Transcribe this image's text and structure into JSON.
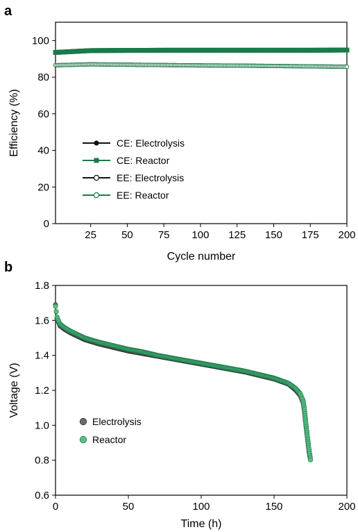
{
  "colors": {
    "electrolysis": "#111111",
    "reactor": "#1b7a4a",
    "reactor_fill": "#5cbf86",
    "electrolysis_fill": "#6b6b6b"
  },
  "chart_data": [
    {
      "type": "line",
      "panel": "a",
      "xlabel": "Cycle number",
      "ylabel": "Efficiency (%)",
      "xlim": [
        1,
        200
      ],
      "ylim": [
        0,
        110
      ],
      "xticks": [
        25,
        50,
        75,
        100,
        125,
        150,
        175,
        200
      ],
      "yticks": [
        0,
        20,
        40,
        60,
        80,
        100
      ],
      "grid": false,
      "legend_position": "lower-left",
      "series": [
        {
          "name": "CE: Electrolysis",
          "marker": "filled-circle",
          "color": "#111111",
          "x": [
            1,
            25,
            50,
            75,
            100,
            125,
            150,
            175,
            200
          ],
          "y": [
            93.5,
            94.5,
            94.6,
            94.7,
            94.7,
            94.7,
            94.7,
            94.7,
            94.8
          ]
        },
        {
          "name": "CE: Reactor",
          "marker": "filled-square",
          "color": "#1b7a4a",
          "x": [
            1,
            25,
            50,
            75,
            100,
            125,
            150,
            175,
            200
          ],
          "y": [
            93.5,
            94.5,
            94.6,
            94.7,
            94.7,
            94.7,
            94.7,
            94.7,
            94.8
          ]
        },
        {
          "name": "EE: Electrolysis",
          "marker": "open-circle",
          "color": "#111111",
          "x": [
            1,
            25,
            50,
            75,
            100,
            125,
            150,
            175,
            200
          ],
          "y": [
            86.5,
            87.0,
            86.8,
            86.6,
            86.4,
            86.3,
            86.1,
            85.9,
            85.7
          ]
        },
        {
          "name": "EE: Reactor",
          "marker": "open-circle",
          "color": "#1b7a4a",
          "x": [
            1,
            25,
            50,
            75,
            100,
            125,
            150,
            175,
            200
          ],
          "y": [
            86.5,
            87.0,
            86.8,
            86.6,
            86.4,
            86.3,
            86.1,
            85.9,
            85.7
          ]
        }
      ]
    },
    {
      "type": "scatter",
      "panel": "b",
      "xlabel": "Time (h)",
      "ylabel": "Voltage (V)",
      "xlim": [
        0,
        200
      ],
      "ylim": [
        0.6,
        1.8
      ],
      "xticks": [
        0,
        50,
        100,
        150,
        200
      ],
      "yticks": [
        0.6,
        0.8,
        1.0,
        1.2,
        1.4,
        1.6,
        1.8
      ],
      "grid": false,
      "legend_position": "lower-left",
      "series": [
        {
          "name": "Electrolysis",
          "color": "#6b6b6b",
          "x": [
            0,
            1,
            3,
            6,
            10,
            15,
            20,
            30,
            40,
            50,
            60,
            70,
            80,
            90,
            100,
            110,
            120,
            130,
            140,
            150,
            155,
            160,
            165,
            168,
            170,
            171,
            172,
            173,
            174,
            175
          ],
          "y": [
            1.69,
            1.61,
            1.57,
            1.55,
            1.53,
            1.51,
            1.49,
            1.465,
            1.445,
            1.425,
            1.41,
            1.395,
            1.38,
            1.365,
            1.35,
            1.335,
            1.32,
            1.305,
            1.285,
            1.265,
            1.25,
            1.235,
            1.2,
            1.17,
            1.13,
            1.07,
            0.99,
            0.92,
            0.85,
            0.8
          ]
        },
        {
          "name": "Reactor",
          "color": "#5cbf86",
          "x": [
            0,
            1,
            3,
            6,
            10,
            15,
            20,
            30,
            40,
            50,
            60,
            70,
            80,
            90,
            100,
            110,
            120,
            130,
            140,
            150,
            155,
            160,
            165,
            168,
            170,
            171,
            172,
            173,
            174,
            175
          ],
          "y": [
            1.68,
            1.62,
            1.58,
            1.56,
            1.54,
            1.52,
            1.5,
            1.475,
            1.455,
            1.435,
            1.42,
            1.4,
            1.385,
            1.37,
            1.355,
            1.34,
            1.325,
            1.31,
            1.29,
            1.27,
            1.255,
            1.24,
            1.21,
            1.18,
            1.14,
            1.08,
            1.0,
            0.93,
            0.86,
            0.81
          ]
        }
      ]
    }
  ]
}
